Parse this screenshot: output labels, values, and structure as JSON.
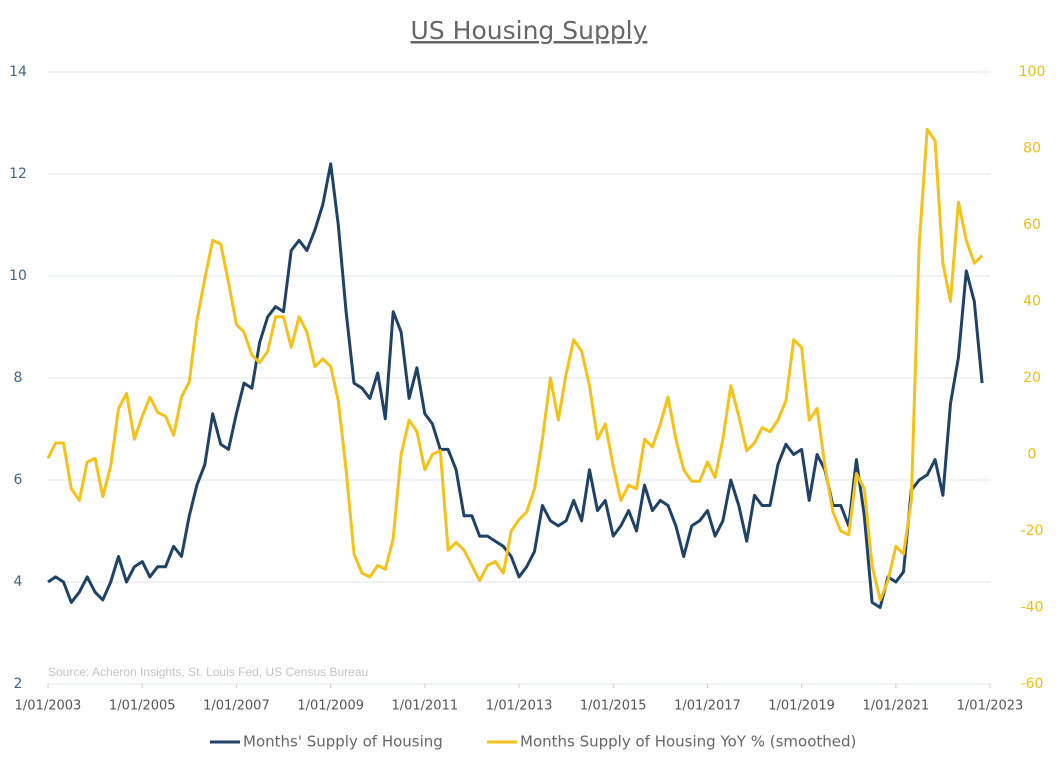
{
  "chart_data": {
    "type": "line",
    "title": "US Housing Supply",
    "annotation": "Source: Acheron Insights, St. Louis Fed, US Census Bureau",
    "x": [
      "2003-01-01",
      "2003-03-01",
      "2003-05-01",
      "2003-07-01",
      "2003-09-01",
      "2003-11-01",
      "2004-01-01",
      "2004-03-01",
      "2004-05-01",
      "2004-07-01",
      "2004-09-01",
      "2004-11-01",
      "2005-01-01",
      "2005-03-01",
      "2005-05-01",
      "2005-07-01",
      "2005-09-01",
      "2005-11-01",
      "2006-01-01",
      "2006-03-01",
      "2006-05-01",
      "2006-07-01",
      "2006-09-01",
      "2006-11-01",
      "2007-01-01",
      "2007-03-01",
      "2007-05-01",
      "2007-07-01",
      "2007-09-01",
      "2007-11-01",
      "2008-01-01",
      "2008-03-01",
      "2008-05-01",
      "2008-07-01",
      "2008-09-01",
      "2008-11-01",
      "2009-01-01",
      "2009-03-01",
      "2009-05-01",
      "2009-07-01",
      "2009-09-01",
      "2009-11-01",
      "2010-01-01",
      "2010-03-01",
      "2010-05-01",
      "2010-07-01",
      "2010-09-01",
      "2010-11-01",
      "2011-01-01",
      "2011-03-01",
      "2011-05-01",
      "2011-07-01",
      "2011-09-01",
      "2011-11-01",
      "2012-01-01",
      "2012-03-01",
      "2012-05-01",
      "2012-07-01",
      "2012-09-01",
      "2012-11-01",
      "2013-01-01",
      "2013-03-01",
      "2013-05-01",
      "2013-07-01",
      "2013-09-01",
      "2013-11-01",
      "2014-01-01",
      "2014-03-01",
      "2014-05-01",
      "2014-07-01",
      "2014-09-01",
      "2014-11-01",
      "2015-01-01",
      "2015-03-01",
      "2015-05-01",
      "2015-07-01",
      "2015-09-01",
      "2015-11-01",
      "2016-01-01",
      "2016-03-01",
      "2016-05-01",
      "2016-07-01",
      "2016-09-01",
      "2016-11-01",
      "2017-01-01",
      "2017-03-01",
      "2017-05-01",
      "2017-07-01",
      "2017-09-01",
      "2017-11-01",
      "2018-01-01",
      "2018-03-01",
      "2018-05-01",
      "2018-07-01",
      "2018-09-01",
      "2018-11-01",
      "2019-01-01",
      "2019-03-01",
      "2019-05-01",
      "2019-07-01",
      "2019-09-01",
      "2019-11-01",
      "2020-01-01",
      "2020-03-01",
      "2020-05-01",
      "2020-07-01",
      "2020-09-01",
      "2020-11-01",
      "2021-01-01",
      "2021-03-01",
      "2021-05-01",
      "2021-07-01",
      "2021-09-01",
      "2021-11-01",
      "2022-01-01",
      "2022-03-01",
      "2022-05-01",
      "2022-07-01",
      "2022-09-01",
      "2022-11-01"
    ],
    "series": [
      {
        "name": "Months' Supply of Housing",
        "color": "#1f4266",
        "axis": "y",
        "values": [
          4.0,
          4.1,
          4.0,
          3.6,
          3.8,
          4.1,
          3.8,
          3.65,
          4.0,
          4.5,
          4.0,
          4.3,
          4.4,
          4.1,
          4.3,
          4.3,
          4.7,
          4.5,
          5.3,
          5.9,
          6.3,
          7.3,
          6.7,
          6.6,
          7.3,
          7.9,
          7.8,
          8.7,
          9.2,
          9.4,
          9.3,
          10.5,
          10.7,
          10.5,
          10.9,
          11.4,
          12.2,
          11.0,
          9.3,
          7.9,
          7.8,
          7.6,
          8.1,
          7.2,
          9.3,
          8.9,
          7.6,
          8.2,
          7.3,
          7.1,
          6.6,
          6.6,
          6.2,
          5.3,
          5.3,
          4.9,
          4.9,
          4.8,
          4.7,
          4.5,
          4.1,
          4.3,
          4.6,
          5.5,
          5.2,
          5.1,
          5.2,
          5.6,
          5.2,
          6.2,
          5.4,
          5.6,
          4.9,
          5.1,
          5.4,
          5.0,
          5.9,
          5.4,
          5.6,
          5.5,
          5.1,
          4.5,
          5.1,
          5.2,
          5.4,
          4.9,
          5.2,
          6.0,
          5.5,
          4.8,
          5.7,
          5.5,
          5.5,
          6.3,
          6.7,
          6.5,
          6.6,
          5.6,
          6.5,
          6.2,
          5.5,
          5.5,
          5.1,
          6.4,
          5.3,
          3.6,
          3.5,
          4.1,
          4.0,
          4.2,
          5.8,
          6.0,
          6.1,
          6.4,
          5.7,
          7.5,
          8.4,
          10.1,
          9.5,
          7.9
        ]
      },
      {
        "name": "Months Supply of Housing YoY % (smoothed)",
        "color": "#f5c21b",
        "axis": "y2",
        "values": [
          -1,
          3,
          3,
          -9,
          -12,
          -2,
          -1,
          -11,
          -3,
          12,
          16,
          4,
          10,
          15,
          11,
          10,
          5,
          15,
          19,
          35,
          46,
          56,
          55,
          45,
          34,
          32,
          26,
          24,
          27,
          36,
          36,
          28,
          36,
          32,
          23,
          25,
          23,
          14,
          -4,
          -26,
          -31,
          -32,
          -29,
          -30,
          -22,
          0,
          9,
          6,
          -4,
          0,
          1,
          -25,
          -23,
          -25,
          -29,
          -33,
          -29,
          -28,
          -31,
          -20,
          -17,
          -15,
          -9,
          4,
          20,
          9,
          21,
          30,
          27,
          18,
          4,
          8,
          -3,
          -12,
          -8,
          -9,
          4,
          2,
          8,
          15,
          4,
          -4,
          -7,
          -7,
          -2,
          -6,
          4,
          18,
          10,
          1,
          3,
          7,
          6,
          9,
          14,
          30,
          28,
          9,
          12,
          -3,
          -15,
          -20,
          -21,
          -5,
          -9,
          -29,
          -38,
          -33,
          -24,
          -26,
          -12,
          55,
          85,
          82,
          50,
          40,
          66,
          56,
          50,
          52
        ]
      }
    ],
    "xlim": [
      "2003-01-01",
      "2023-01-01"
    ],
    "xticks": [
      {
        "value": "2003-01-01",
        "label": "1/01/2003"
      },
      {
        "value": "2005-01-01",
        "label": "1/01/2005"
      },
      {
        "value": "2007-01-01",
        "label": "1/01/2007"
      },
      {
        "value": "2009-01-01",
        "label": "1/01/2009"
      },
      {
        "value": "2011-01-01",
        "label": "1/01/2011"
      },
      {
        "value": "2013-01-01",
        "label": "1/01/2013"
      },
      {
        "value": "2015-01-01",
        "label": "1/01/2015"
      },
      {
        "value": "2017-01-01",
        "label": "1/01/2017"
      },
      {
        "value": "2019-01-01",
        "label": "1/01/2019"
      },
      {
        "value": "2021-01-01",
        "label": "1/01/2021"
      },
      {
        "value": "2023-01-01",
        "label": "1/01/2023"
      }
    ],
    "ylim": [
      2,
      14
    ],
    "yticks": [
      2,
      4,
      6,
      8,
      10,
      12,
      14
    ],
    "y2lim": [
      -60,
      100
    ],
    "y2ticks": [
      -60,
      -40,
      -20,
      0,
      20,
      40,
      60,
      80,
      100
    ],
    "grid": true,
    "legend": "bottom"
  }
}
